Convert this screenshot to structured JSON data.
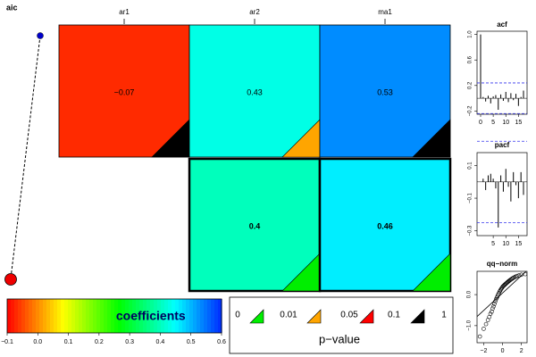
{
  "chart_data": [
    {
      "type": "heatmap",
      "left_title": "aic",
      "columns": [
        "ar1",
        "ar2",
        "ma1"
      ],
      "cells": [
        {
          "row": 0,
          "col": 0,
          "value": -0.07,
          "label": "−0.07",
          "bold": false,
          "pvalue_color": "#000000"
        },
        {
          "row": 0,
          "col": 1,
          "value": 0.43,
          "label": "0.43",
          "bold": false,
          "pvalue_color": "#ffa500"
        },
        {
          "row": 0,
          "col": 2,
          "value": 0.53,
          "label": "0.53",
          "bold": false,
          "pvalue_color": "#000000"
        },
        {
          "row": 1,
          "col": 1,
          "value": 0.4,
          "label": "0.4",
          "bold": true,
          "pvalue_color": "#00ee00"
        },
        {
          "row": 1,
          "col": 2,
          "value": 0.46,
          "label": "0.46",
          "bold": true,
          "pvalue_color": "#00ee00"
        }
      ],
      "selected_row": 1,
      "colorbar": {
        "title": "coefficients",
        "ticks": [
          "−0.1",
          "0.0",
          "0.1",
          "0.2",
          "0.3",
          "0.4",
          "0.5",
          "0.6"
        ],
        "min": -0.1,
        "max": 0.6
      },
      "pvalue_legend": {
        "title": "p−value",
        "labels": [
          "0",
          "0.01",
          "0.05",
          "0.1",
          "1"
        ],
        "colors": [
          "#00ee00",
          "#ffa500",
          "#ff0000",
          "#000000"
        ]
      }
    },
    {
      "type": "bar",
      "title": "acf",
      "x_ticks": [
        "0",
        "5",
        "10",
        "15"
      ],
      "y_ticks": [
        "−0.2",
        "0.2",
        "0.6",
        "1.0"
      ],
      "ylim": [
        -0.25,
        1.05
      ],
      "xlim": [
        0,
        17
      ],
      "conf_band": 0.24,
      "lags": [
        0,
        1,
        2,
        3,
        4,
        5,
        6,
        7,
        8,
        9,
        10,
        11,
        12,
        13,
        14,
        15,
        16,
        17
      ],
      "values": [
        1.0,
        0.02,
        -0.05,
        0.04,
        -0.08,
        0.03,
        0.05,
        -0.18,
        0.06,
        -0.04,
        0.1,
        -0.06,
        0.08,
        -0.03,
        0.07,
        -0.12,
        0.02,
        0.12
      ]
    },
    {
      "type": "bar",
      "title": "pacf",
      "x_ticks": [
        "5",
        "10",
        "15"
      ],
      "y_ticks": [
        "−0.3",
        "−0.1",
        "0.1"
      ],
      "ylim": [
        -0.33,
        0.18
      ],
      "xlim": [
        0,
        17
      ],
      "conf_band": 0.25,
      "lags": [
        1,
        2,
        3,
        4,
        5,
        6,
        7,
        8,
        9,
        10,
        11,
        12,
        13,
        14,
        15,
        16,
        17
      ],
      "values": [
        0.02,
        -0.05,
        0.04,
        0.05,
        0.02,
        -0.04,
        -0.28,
        0.04,
        -0.06,
        0.08,
        -0.03,
        -0.12,
        0.06,
        -0.02,
        -0.1,
        0.06,
        -0.08
      ]
    },
    {
      "type": "scatter",
      "title": "qq−norm",
      "x_ticks": [
        "−2",
        "0",
        "2"
      ],
      "y_ticks": [
        "−1.0",
        "0.0"
      ],
      "xlim": [
        -2.7,
        2.6
      ],
      "ylim": [
        -1.55,
        0.75
      ],
      "points_x": [
        -2.4,
        -2.0,
        -1.75,
        -1.55,
        -1.4,
        -1.28,
        -1.15,
        -1.05,
        -0.95,
        -0.86,
        -0.77,
        -0.69,
        -0.61,
        -0.53,
        -0.46,
        -0.38,
        -0.31,
        -0.24,
        -0.17,
        -0.1,
        -0.03,
        0.03,
        0.1,
        0.17,
        0.24,
        0.31,
        0.38,
        0.46,
        0.53,
        0.61,
        0.69,
        0.77,
        0.86,
        0.95,
        1.05,
        1.15,
        1.28,
        1.4,
        1.55,
        1.75,
        2.0,
        2.4
      ],
      "points_y": [
        -1.35,
        -1.1,
        -0.95,
        -0.82,
        -0.72,
        -0.62,
        -0.55,
        -0.45,
        -0.38,
        -0.3,
        -0.22,
        -0.15,
        -0.1,
        -0.05,
        0.0,
        0.05,
        0.1,
        0.13,
        0.17,
        0.2,
        0.23,
        0.26,
        0.28,
        0.3,
        0.32,
        0.34,
        0.36,
        0.38,
        0.4,
        0.42,
        0.44,
        0.46,
        0.48,
        0.5,
        0.52,
        0.54,
        0.56,
        0.58,
        0.6,
        0.62,
        0.64,
        0.66
      ],
      "ref_line": [
        0.05,
        0.28
      ]
    }
  ]
}
